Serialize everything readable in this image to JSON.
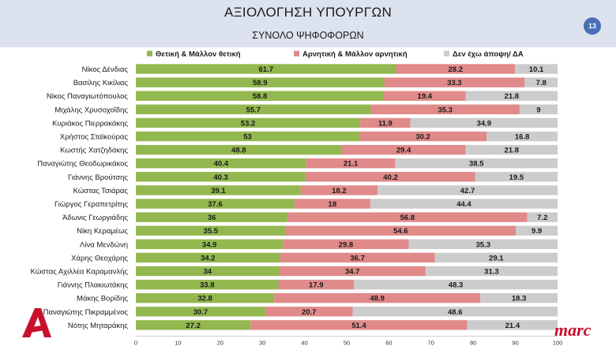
{
  "header": {
    "title": "ΑΞΙΟΛΟΓΗΣΗ ΥΠΟΥΡΓΩΝ",
    "subtitle": "ΣΥΝΟΛΟ ΨΗΦΟΦΟΡΩΝ",
    "page_number": "13"
  },
  "logos": {
    "left": "A",
    "right": "marc"
  },
  "colors": {
    "positive": "#93b84f",
    "negative": "#e08a8a",
    "no_opinion": "#cccccc",
    "header_bg": "#dde3ee",
    "badge": "#4a6fb5",
    "logo_red": "#c8102e"
  },
  "chart_data": {
    "type": "bar",
    "orientation": "horizontal",
    "stacked": true,
    "categories": [
      "Νίκος Δένδιας",
      "Βασίλης Κικίλιας",
      "Νίκος Παναγιωτόπουλος",
      "Μιχάλης Χρυσοχοΐδης",
      "Κυριάκος Πιερρακάκης",
      "Χρήστος Σταϊκούρας",
      "Κωστής Χατζηδάκης",
      "Παναγιώτης Θεοδωρικάκος",
      "Γιάννης Βρούτσης",
      "Κώστας Τσιάρας",
      "Γιώργος Γεραπετρίτης",
      "Άδωνις Γεωργιάδης",
      "Νίκη Κεραμέως",
      "Λίνα Μενδώνη",
      "Χάρης Θεοχάρης",
      "Κώστας Αχιλλέα Καραμανλής",
      "Γιάννης Πλακιωτάκης",
      "Μάκης Βορίδης",
      "Παναγιώτης Πικραμμένος",
      "Νότης Μηταράκης"
    ],
    "series": [
      {
        "name": "Θετική & Μάλλον θετική",
        "color": "#93b84f",
        "values": [
          61.7,
          58.9,
          58.8,
          55.7,
          53.2,
          53,
          48.8,
          40.4,
          40.3,
          39.1,
          37.6,
          36,
          35.5,
          34.9,
          34.2,
          34,
          33.8,
          32.8,
          30.7,
          27.2
        ]
      },
      {
        "name": "Αρνητική & Μάλλον αρνητική",
        "color": "#e08a8a",
        "values": [
          28.2,
          33.3,
          19.4,
          35.3,
          11.9,
          30.2,
          29.4,
          21.1,
          40.2,
          18.2,
          18,
          56.8,
          54.6,
          29.8,
          36.7,
          34.7,
          17.9,
          48.9,
          20.7,
          51.4
        ]
      },
      {
        "name": "Δεν έχω άποψη/ ΔΑ",
        "color": "#cccccc",
        "values": [
          10.1,
          7.8,
          21.8,
          9,
          34.9,
          16.8,
          21.8,
          38.5,
          19.5,
          42.7,
          44.4,
          7.2,
          9.9,
          35.3,
          29.1,
          31.3,
          48.3,
          18.3,
          48.6,
          21.4
        ]
      }
    ],
    "x_ticks": [
      0,
      10,
      20,
      30,
      40,
      50,
      60,
      70,
      80,
      90,
      100
    ],
    "xlim": [
      0,
      100
    ],
    "legend": "top",
    "grid": false
  }
}
